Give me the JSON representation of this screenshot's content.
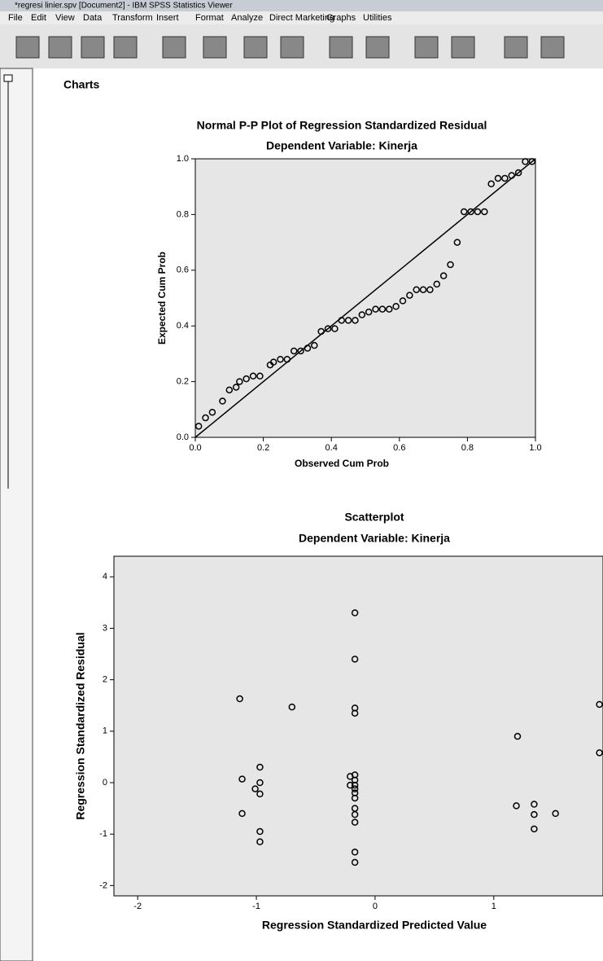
{
  "window": {
    "title": "*regresi linier.spv [Document2] - IBM SPSS Statistics Viewer",
    "menu": [
      "File",
      "Edit",
      "View",
      "Data",
      "Transform",
      "Insert",
      "Format",
      "Analyze",
      "Direct Marketing",
      "Graphs",
      "Utilities"
    ]
  },
  "heading": "Charts",
  "chart_data": [
    {
      "type": "scatter",
      "title": "Normal P-P Plot of Regression Standardized Residual",
      "subtitle": "Dependent Variable: Kinerja",
      "x_label": "Observed Cum Prob",
      "y_label": "Expected Cum Prob",
      "x": [
        0.01,
        0.03,
        0.05,
        0.08,
        0.1,
        0.12,
        0.13,
        0.15,
        0.17,
        0.19,
        0.22,
        0.23,
        0.25,
        0.27,
        0.29,
        0.31,
        0.33,
        0.35,
        0.37,
        0.39,
        0.41,
        0.43,
        0.45,
        0.47,
        0.49,
        0.51,
        0.53,
        0.55,
        0.57,
        0.59,
        0.61,
        0.63,
        0.65,
        0.67,
        0.69,
        0.71,
        0.73,
        0.75,
        0.77,
        0.79,
        0.81,
        0.83,
        0.85,
        0.87,
        0.89,
        0.91,
        0.93,
        0.95,
        0.97,
        0.99
      ],
      "values": [
        0.04,
        0.07,
        0.09,
        0.13,
        0.17,
        0.18,
        0.2,
        0.21,
        0.22,
        0.22,
        0.26,
        0.27,
        0.28,
        0.28,
        0.31,
        0.31,
        0.32,
        0.33,
        0.38,
        0.39,
        0.39,
        0.42,
        0.42,
        0.42,
        0.44,
        0.45,
        0.46,
        0.46,
        0.46,
        0.47,
        0.49,
        0.51,
        0.53,
        0.53,
        0.53,
        0.55,
        0.58,
        0.62,
        0.7,
        0.81,
        0.81,
        0.81,
        0.81,
        0.91,
        0.93,
        0.93,
        0.94,
        0.95,
        0.99,
        0.99
      ],
      "xlim": [
        0,
        1
      ],
      "ylim": [
        0,
        1
      ],
      "xticks": [
        {
          "value": 0,
          "label": "0.0"
        },
        0.2,
        0.4,
        0.6,
        0.8,
        {
          "value": 1,
          "label": "1.0"
        }
      ],
      "yticks": [
        {
          "value": 0,
          "label": "0.0"
        },
        0.2,
        0.4,
        0.6,
        0.8,
        {
          "value": 1,
          "label": "1.0"
        }
      ],
      "reference_line": true,
      "color": "#000000"
    },
    {
      "type": "scatter",
      "title": "Scatterplot",
      "subtitle": "Dependent Variable: Kinerja",
      "x_label": "Regression Standardized Predicted Value",
      "y_label": "Regression Standardized Residual",
      "x": [
        -0.17,
        -0.17,
        -0.17,
        -0.17,
        -0.17,
        -0.17,
        -0.17,
        -0.17,
        -0.17,
        -0.17,
        -0.17,
        -0.17,
        -0.17,
        -0.17,
        -0.17,
        -1.14,
        -0.7,
        -1.12,
        -0.97,
        -0.97,
        -1.01,
        -0.97,
        -1.12,
        -0.97,
        -0.97,
        -0.21,
        -0.21,
        1.2,
        1.89,
        1.89,
        1.19,
        1.34,
        1.34,
        1.52,
        1.34
      ],
      "values": [
        3.3,
        2.4,
        1.45,
        1.35,
        0.15,
        0.05,
        -0.05,
        -0.12,
        -0.2,
        -0.3,
        -0.5,
        -0.62,
        -0.77,
        -1.35,
        -1.55,
        1.63,
        1.47,
        0.07,
        0.3,
        0.0,
        -0.12,
        -0.22,
        -0.6,
        -0.95,
        -1.15,
        0.12,
        -0.05,
        0.9,
        1.52,
        0.58,
        -0.45,
        -0.42,
        -0.62,
        -0.6,
        -0.9
      ],
      "xlim": [
        -2.2,
        1.92
      ],
      "ylim": [
        -2.2,
        4.4
      ],
      "xticks": [
        -2,
        -1,
        0,
        1
      ],
      "yticks": [
        -2,
        -1,
        0,
        1,
        2,
        3,
        4
      ],
      "reference_line": false,
      "color": "#000000"
    }
  ]
}
